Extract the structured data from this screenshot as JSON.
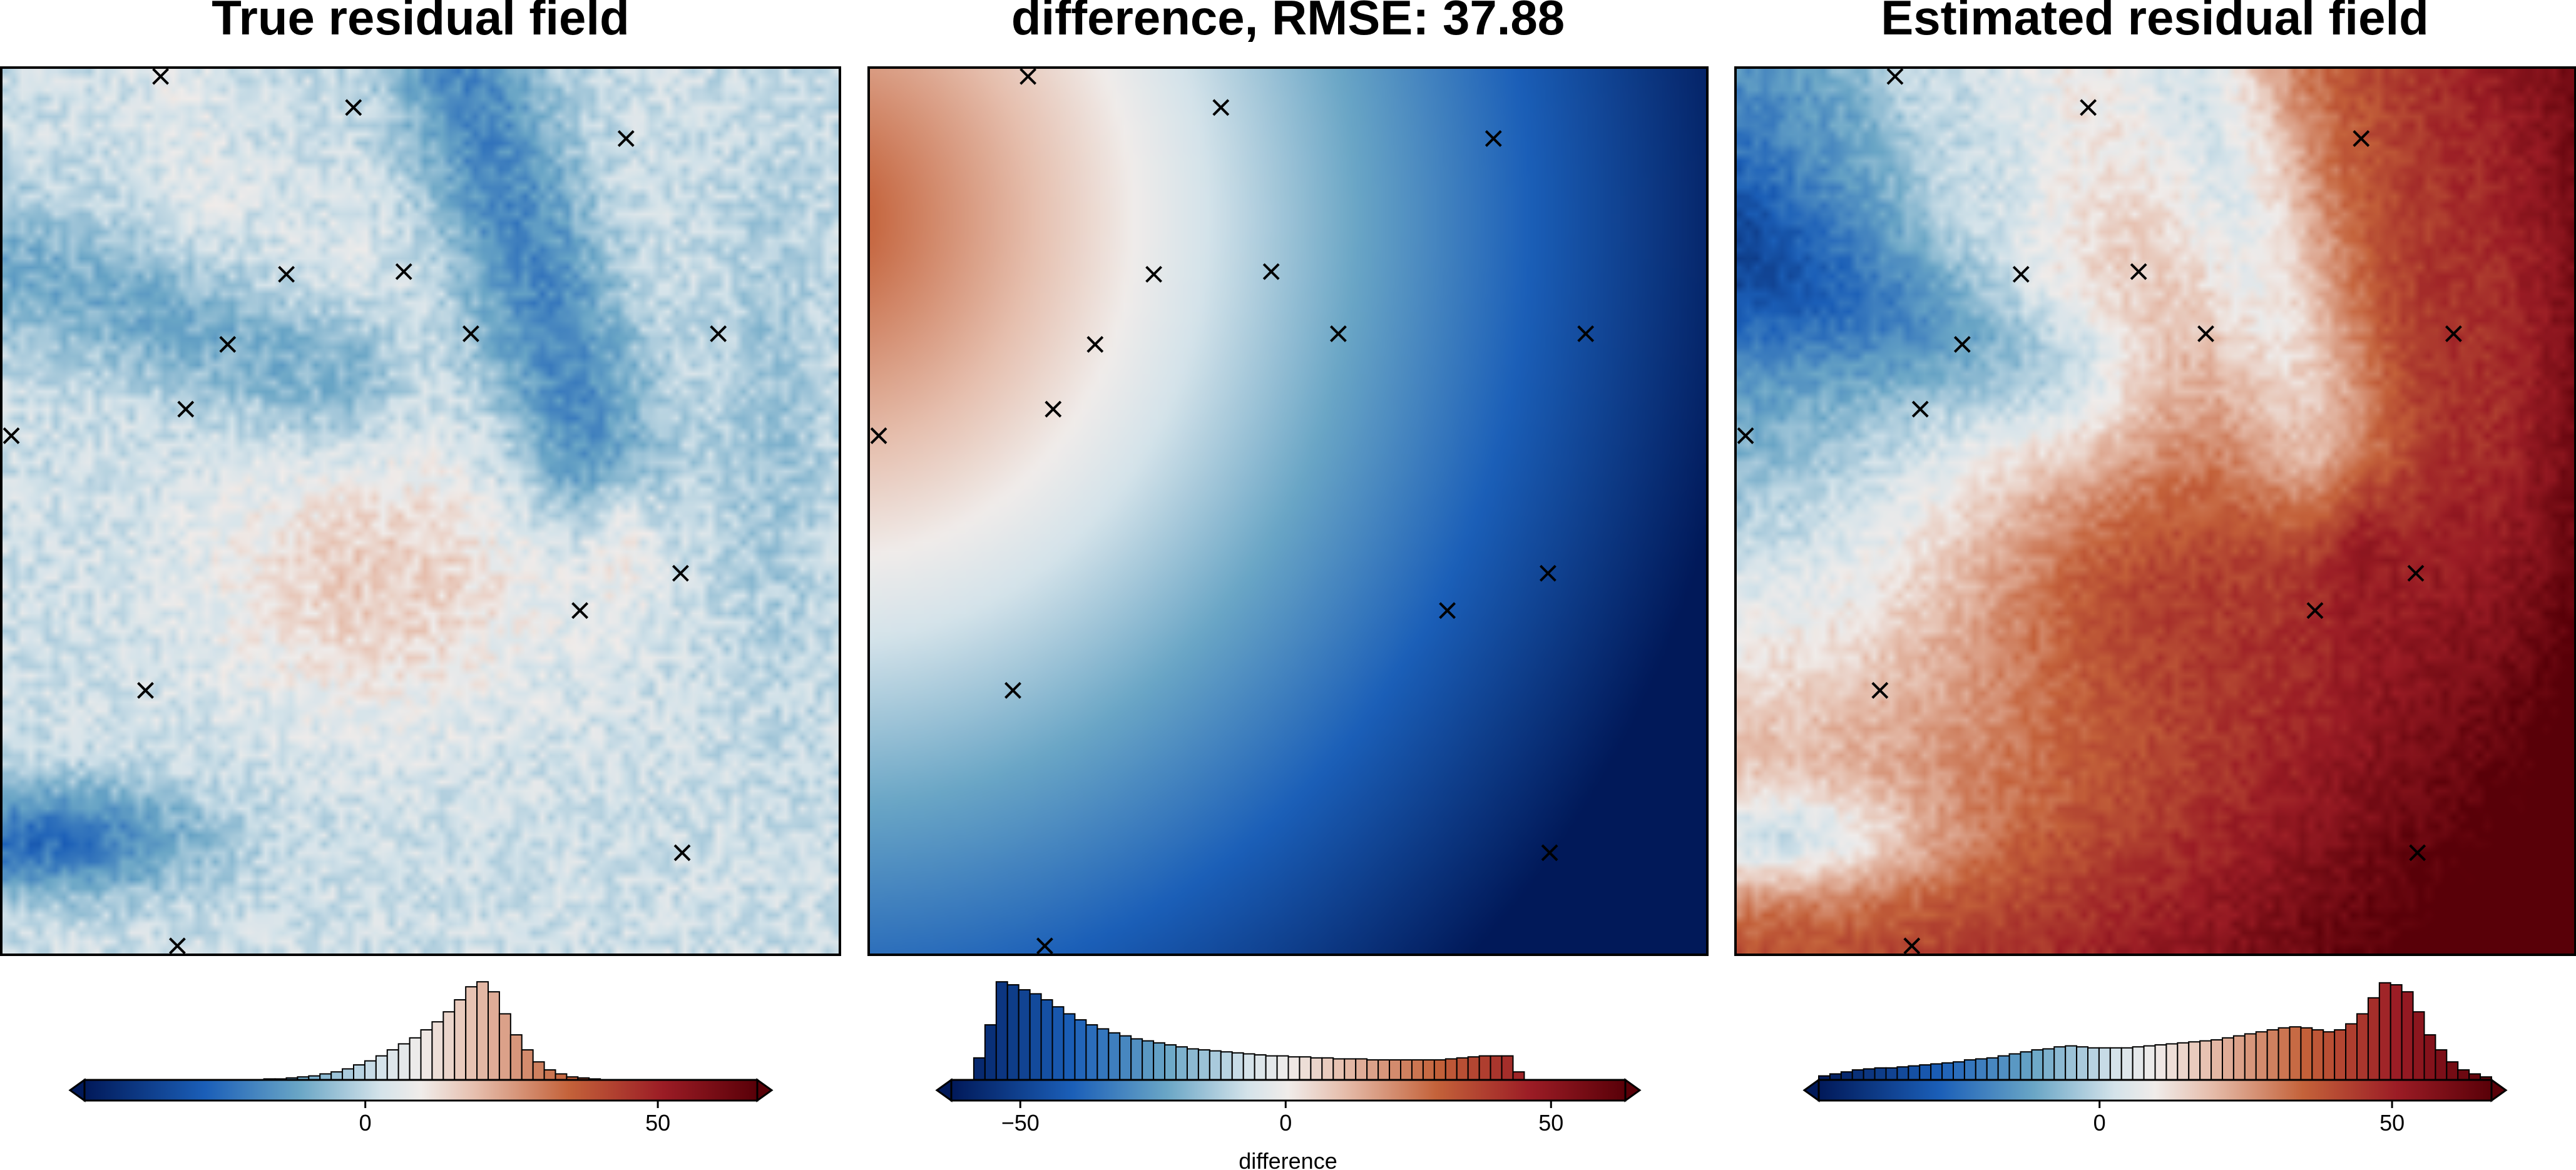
{
  "chart_data": [
    {
      "type": "heatmap",
      "title": "True residual field",
      "field": "true",
      "colorbar": {
        "ticks": [
          0,
          50
        ],
        "tick_labels": [
          "0",
          "50"
        ],
        "range": [
          -48,
          67
        ],
        "label": "",
        "histogram": [
          0,
          0,
          0,
          0,
          0,
          0,
          0,
          0,
          0,
          0,
          0,
          0,
          0,
          0,
          0,
          0,
          0.01,
          0.01,
          0.02,
          0.03,
          0.04,
          0.06,
          0.08,
          0.11,
          0.15,
          0.19,
          0.24,
          0.3,
          0.36,
          0.42,
          0.5,
          0.58,
          0.68,
          0.8,
          0.93,
          0.98,
          0.88,
          0.66,
          0.45,
          0.3,
          0.18,
          0.1,
          0.06,
          0.03,
          0.02,
          0.01,
          0,
          0,
          0,
          0,
          0,
          0,
          0,
          0,
          0,
          0,
          0,
          0,
          0,
          0
        ]
      }
    },
    {
      "type": "heatmap",
      "title": "difference, RMSE: 37.88",
      "field": "difference",
      "colorbar": {
        "ticks": [
          -50,
          0,
          50
        ],
        "tick_labels": [
          "−50",
          "0",
          "50"
        ],
        "range": [
          -63,
          64
        ],
        "label": "difference",
        "histogram": [
          0,
          0,
          0.22,
          0.55,
          0.98,
          0.95,
          0.9,
          0.86,
          0.8,
          0.73,
          0.66,
          0.6,
          0.55,
          0.51,
          0.47,
          0.44,
          0.41,
          0.39,
          0.37,
          0.35,
          0.33,
          0.31,
          0.3,
          0.29,
          0.28,
          0.27,
          0.26,
          0.25,
          0.24,
          0.24,
          0.23,
          0.23,
          0.22,
          0.22,
          0.21,
          0.21,
          0.21,
          0.2,
          0.2,
          0.2,
          0.2,
          0.2,
          0.2,
          0.2,
          0.21,
          0.22,
          0.23,
          0.24,
          0.24,
          0.24,
          0.08,
          0,
          0,
          0,
          0,
          0,
          0,
          0,
          0,
          0
        ]
      }
    },
    {
      "type": "heatmap",
      "title": "Estimated residual field",
      "field": "estimated",
      "colorbar": {
        "ticks": [
          0,
          50
        ],
        "tick_labels": [
          "0",
          "50"
        ],
        "range": [
          -48,
          67
        ],
        "label": "",
        "histogram": [
          0.04,
          0.06,
          0.08,
          0.1,
          0.11,
          0.12,
          0.12,
          0.13,
          0.14,
          0.15,
          0.16,
          0.17,
          0.18,
          0.2,
          0.21,
          0.22,
          0.24,
          0.26,
          0.28,
          0.3,
          0.31,
          0.33,
          0.34,
          0.33,
          0.32,
          0.32,
          0.32,
          0.32,
          0.33,
          0.34,
          0.35,
          0.36,
          0.37,
          0.38,
          0.39,
          0.4,
          0.42,
          0.44,
          0.46,
          0.48,
          0.5,
          0.52,
          0.53,
          0.52,
          0.5,
          0.48,
          0.5,
          0.56,
          0.66,
          0.82,
          0.97,
          0.95,
          0.88,
          0.68,
          0.45,
          0.3,
          0.18,
          0.1,
          0.06,
          0.03
        ]
      }
    }
  ],
  "markers": [
    [
      0.19,
      0.01
    ],
    [
      0.42,
      0.045
    ],
    [
      0.745,
      0.08
    ],
    [
      0.34,
      0.233
    ],
    [
      0.48,
      0.23
    ],
    [
      0.27,
      0.312
    ],
    [
      0.56,
      0.3
    ],
    [
      0.855,
      0.3
    ],
    [
      0.22,
      0.385
    ],
    [
      0.012,
      0.415
    ],
    [
      0.81,
      0.57
    ],
    [
      0.69,
      0.612
    ],
    [
      0.172,
      0.702
    ],
    [
      0.812,
      0.885
    ],
    [
      0.21,
      0.99
    ]
  ],
  "colors": {
    "frame": "#000000",
    "marker": "#000000"
  }
}
